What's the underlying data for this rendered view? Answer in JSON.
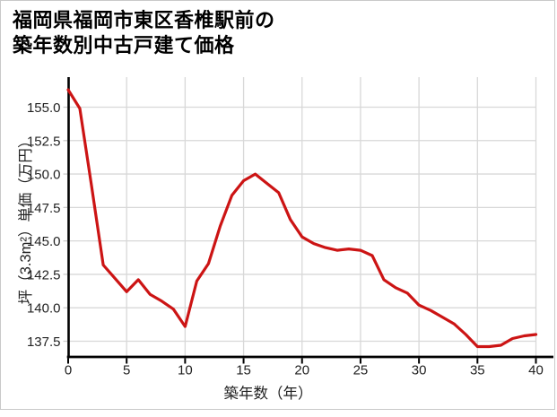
{
  "page": {
    "background": "#ffffff",
    "border_color": "#c9c9c9"
  },
  "title": {
    "line1": "福岡県福岡市東区香椎駅前の",
    "line2": "築年数別中古戸建て価格"
  },
  "chart_data": {
    "type": "line",
    "title": "福岡県福岡市東区香椎駅前の築年数別中古戸建て価格",
    "xlabel": "築年数（年）",
    "ylabel": "坪（3.3m²）単価（万円）",
    "x": [
      0,
      1,
      2,
      3,
      4,
      5,
      6,
      7,
      8,
      9,
      10,
      11,
      12,
      13,
      14,
      15,
      16,
      17,
      18,
      19,
      20,
      21,
      22,
      23,
      24,
      25,
      26,
      27,
      28,
      29,
      30,
      31,
      32,
      33,
      34,
      35,
      36,
      37,
      38,
      39,
      40
    ],
    "y": [
      156.3,
      154.9,
      149.1,
      143.2,
      142.2,
      141.2,
      142.1,
      141.0,
      140.5,
      139.9,
      138.6,
      142.0,
      143.3,
      146.1,
      148.4,
      149.5,
      150.0,
      149.3,
      148.6,
      146.6,
      145.3,
      144.8,
      144.5,
      144.3,
      144.4,
      144.3,
      143.9,
      142.1,
      141.5,
      141.1,
      140.2,
      139.8,
      139.3,
      138.8,
      138.0,
      137.1,
      137.1,
      137.2,
      137.7,
      137.9,
      138.0
    ],
    "x_ticks": [
      "0",
      "5",
      "10",
      "15",
      "20",
      "25",
      "30",
      "35",
      "40"
    ],
    "y_ticks": [
      "137.5",
      "140.0",
      "142.5",
      "145.0",
      "147.5",
      "150.0",
      "152.5",
      "155.0"
    ],
    "xlim": [
      0,
      40
    ],
    "ylim": [
      136.3,
      157.2
    ],
    "grid": true,
    "legend": null,
    "line_color": "#cc1414",
    "grid_color": "#d8d8d8",
    "y_tick_color": "#cccccc",
    "axis_color": "#000000",
    "tick_label_color": "#222222"
  }
}
